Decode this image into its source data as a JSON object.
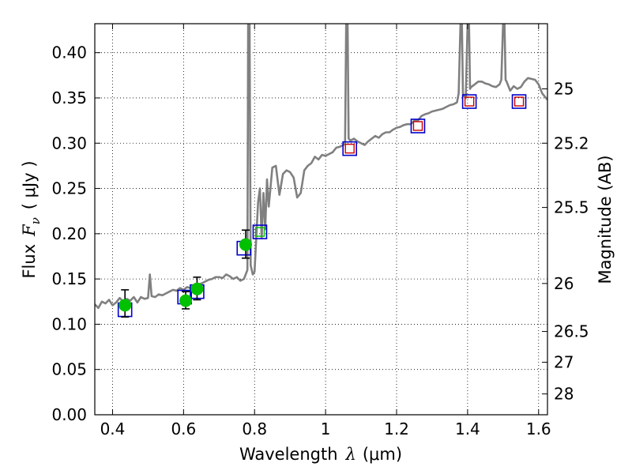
{
  "chart_data": {
    "type": "scatter",
    "xlabel_prefix": "Wavelength",
    "xlabel_math": "λ",
    "xlabel_suffix": "(μm)",
    "ylabel_prefix": "Flux",
    "ylabel_math": "F",
    "ylabel_subscript": "ν",
    "ylabel_suffix": "( μJy )",
    "y2label": "Magnitude (AB)",
    "xlim": [
      0.35,
      1.625
    ],
    "ylim": [
      0.0,
      0.432
    ],
    "grid": true,
    "x_ticks": [
      {
        "value": 0.4,
        "label": "0.4"
      },
      {
        "value": 0.6,
        "label": "0.6"
      },
      {
        "value": 0.8,
        "label": "0.8"
      },
      {
        "value": 1.0,
        "label": "1"
      },
      {
        "value": 1.2,
        "label": "1.2"
      },
      {
        "value": 1.4,
        "label": "1.4"
      },
      {
        "value": 1.6,
        "label": "1.6"
      }
    ],
    "y_ticks": [
      {
        "value": 0.0,
        "label": "0.00"
      },
      {
        "value": 0.05,
        "label": "0.05"
      },
      {
        "value": 0.1,
        "label": "0.10"
      },
      {
        "value": 0.15,
        "label": "0.15"
      },
      {
        "value": 0.2,
        "label": "0.20"
      },
      {
        "value": 0.25,
        "label": "0.25"
      },
      {
        "value": 0.3,
        "label": "0.30"
      },
      {
        "value": 0.35,
        "label": "0.35"
      },
      {
        "value": 0.4,
        "label": "0.40"
      }
    ],
    "y2_ticks": [
      {
        "flux": 0.36,
        "label": "25"
      },
      {
        "flux": 0.3,
        "label": "25.2"
      },
      {
        "flux": 0.229,
        "label": "25.5"
      },
      {
        "flux": 0.145,
        "label": "26"
      },
      {
        "flux": 0.092,
        "label": "26.5"
      },
      {
        "flux": 0.058,
        "label": "27"
      },
      {
        "flux": 0.023,
        "label": "28"
      }
    ],
    "colors": {
      "spectrum": "#808080",
      "observed_points": "#00c000",
      "model_box": "#0000cc",
      "model_inner": "#cc0000",
      "grid": "#000000"
    },
    "series": [
      {
        "type": "line",
        "points": [
          [
            0.35,
            0.122
          ],
          [
            0.36,
            0.118
          ],
          [
            0.37,
            0.125
          ],
          [
            0.38,
            0.123
          ],
          [
            0.39,
            0.127
          ],
          [
            0.4,
            0.121
          ],
          [
            0.41,
            0.124
          ],
          [
            0.42,
            0.129
          ],
          [
            0.43,
            0.125
          ],
          [
            0.44,
            0.128
          ],
          [
            0.45,
            0.126
          ],
          [
            0.46,
            0.13
          ],
          [
            0.47,
            0.124
          ],
          [
            0.48,
            0.13
          ],
          [
            0.49,
            0.128
          ],
          [
            0.5,
            0.129
          ],
          [
            0.505,
            0.155
          ],
          [
            0.51,
            0.131
          ],
          [
            0.52,
            0.13
          ],
          [
            0.53,
            0.133
          ],
          [
            0.54,
            0.132
          ],
          [
            0.55,
            0.134
          ],
          [
            0.56,
            0.136
          ],
          [
            0.57,
            0.138
          ],
          [
            0.58,
            0.137
          ],
          [
            0.59,
            0.14
          ],
          [
            0.6,
            0.138
          ],
          [
            0.61,
            0.141
          ],
          [
            0.62,
            0.14
          ],
          [
            0.63,
            0.143
          ],
          [
            0.64,
            0.144
          ],
          [
            0.65,
            0.145
          ],
          [
            0.66,
            0.147
          ],
          [
            0.67,
            0.149
          ],
          [
            0.68,
            0.15
          ],
          [
            0.69,
            0.152
          ],
          [
            0.7,
            0.152
          ],
          [
            0.71,
            0.151
          ],
          [
            0.72,
            0.155
          ],
          [
            0.73,
            0.153
          ],
          [
            0.74,
            0.15
          ],
          [
            0.75,
            0.152
          ],
          [
            0.76,
            0.148
          ],
          [
            0.77,
            0.15
          ],
          [
            0.775,
            0.155
          ],
          [
            0.78,
            0.16
          ],
          [
            0.782,
            0.432
          ],
          [
            0.786,
            0.432
          ],
          [
            0.789,
            0.165
          ],
          [
            0.795,
            0.155
          ],
          [
            0.8,
            0.158
          ],
          [
            0.81,
            0.235
          ],
          [
            0.815,
            0.25
          ],
          [
            0.82,
            0.195
          ],
          [
            0.825,
            0.245
          ],
          [
            0.83,
            0.205
          ],
          [
            0.835,
            0.26
          ],
          [
            0.84,
            0.23
          ],
          [
            0.85,
            0.273
          ],
          [
            0.86,
            0.275
          ],
          [
            0.87,
            0.243
          ],
          [
            0.88,
            0.266
          ],
          [
            0.89,
            0.27
          ],
          [
            0.9,
            0.268
          ],
          [
            0.91,
            0.262
          ],
          [
            0.92,
            0.24
          ],
          [
            0.93,
            0.245
          ],
          [
            0.94,
            0.27
          ],
          [
            0.95,
            0.275
          ],
          [
            0.96,
            0.278
          ],
          [
            0.97,
            0.285
          ],
          [
            0.98,
            0.282
          ],
          [
            0.99,
            0.287
          ],
          [
            1.0,
            0.286
          ],
          [
            1.01,
            0.288
          ],
          [
            1.02,
            0.29
          ],
          [
            1.03,
            0.295
          ],
          [
            1.04,
            0.296
          ],
          [
            1.05,
            0.298
          ],
          [
            1.055,
            0.3
          ],
          [
            1.058,
            0.432
          ],
          [
            1.062,
            0.432
          ],
          [
            1.065,
            0.305
          ],
          [
            1.07,
            0.303
          ],
          [
            1.08,
            0.305
          ],
          [
            1.09,
            0.302
          ],
          [
            1.1,
            0.3
          ],
          [
            1.11,
            0.298
          ],
          [
            1.12,
            0.302
          ],
          [
            1.13,
            0.305
          ],
          [
            1.14,
            0.308
          ],
          [
            1.15,
            0.306
          ],
          [
            1.16,
            0.31
          ],
          [
            1.17,
            0.312
          ],
          [
            1.18,
            0.312
          ],
          [
            1.19,
            0.315
          ],
          [
            1.2,
            0.317
          ],
          [
            1.21,
            0.318
          ],
          [
            1.22,
            0.32
          ],
          [
            1.23,
            0.321
          ],
          [
            1.24,
            0.321
          ],
          [
            1.25,
            0.325
          ],
          [
            1.26,
            0.325
          ],
          [
            1.27,
            0.33
          ],
          [
            1.28,
            0.332
          ],
          [
            1.29,
            0.333
          ],
          [
            1.3,
            0.335
          ],
          [
            1.31,
            0.336
          ],
          [
            1.32,
            0.337
          ],
          [
            1.33,
            0.338
          ],
          [
            1.34,
            0.34
          ],
          [
            1.35,
            0.342
          ],
          [
            1.36,
            0.343
          ],
          [
            1.37,
            0.345
          ],
          [
            1.375,
            0.355
          ],
          [
            1.38,
            0.432
          ],
          [
            1.384,
            0.432
          ],
          [
            1.387,
            0.355
          ],
          [
            1.39,
            0.352
          ],
          [
            1.395,
            0.35
          ],
          [
            1.4,
            0.432
          ],
          [
            1.404,
            0.432
          ],
          [
            1.407,
            0.36
          ],
          [
            1.41,
            0.362
          ],
          [
            1.42,
            0.365
          ],
          [
            1.43,
            0.368
          ],
          [
            1.44,
            0.368
          ],
          [
            1.45,
            0.366
          ],
          [
            1.46,
            0.365
          ],
          [
            1.47,
            0.363
          ],
          [
            1.48,
            0.362
          ],
          [
            1.49,
            0.365
          ],
          [
            1.495,
            0.37
          ],
          [
            1.5,
            0.432
          ],
          [
            1.504,
            0.432
          ],
          [
            1.507,
            0.37
          ],
          [
            1.51,
            0.368
          ],
          [
            1.52,
            0.358
          ],
          [
            1.53,
            0.363
          ],
          [
            1.54,
            0.36
          ],
          [
            1.55,
            0.362
          ],
          [
            1.56,
            0.368
          ],
          [
            1.57,
            0.372
          ],
          [
            1.58,
            0.371
          ],
          [
            1.59,
            0.37
          ],
          [
            1.6,
            0.365
          ],
          [
            1.61,
            0.355
          ],
          [
            1.625,
            0.348
          ]
        ]
      },
      {
        "type": "scatter-errorbar",
        "points": [
          {
            "x": 0.435,
            "y": 0.121,
            "yerr_low": 0.108,
            "yerr_high": 0.138
          },
          {
            "x": 0.606,
            "y": 0.126,
            "yerr_low": 0.117,
            "yerr_high": 0.136
          },
          {
            "x": 0.638,
            "y": 0.139,
            "yerr_low": 0.127,
            "yerr_high": 0.152
          },
          {
            "x": 0.775,
            "y": 0.188,
            "yerr_low": 0.173,
            "yerr_high": 0.204
          }
        ]
      },
      {
        "type": "model-squares",
        "points": [
          {
            "x": 0.435,
            "y": 0.116,
            "inner": "none"
          },
          {
            "x": 0.603,
            "y": 0.13,
            "inner": "none"
          },
          {
            "x": 0.638,
            "y": 0.136,
            "inner": "none"
          },
          {
            "x": 0.77,
            "y": 0.184,
            "inner": "none"
          },
          {
            "x": 0.815,
            "y": 0.202,
            "inner": "green"
          },
          {
            "x": 1.068,
            "y": 0.294,
            "inner": "red"
          },
          {
            "x": 1.26,
            "y": 0.319,
            "inner": "red"
          },
          {
            "x": 1.405,
            "y": 0.346,
            "inner": "red"
          },
          {
            "x": 1.545,
            "y": 0.346,
            "inner": "red"
          }
        ]
      }
    ]
  }
}
